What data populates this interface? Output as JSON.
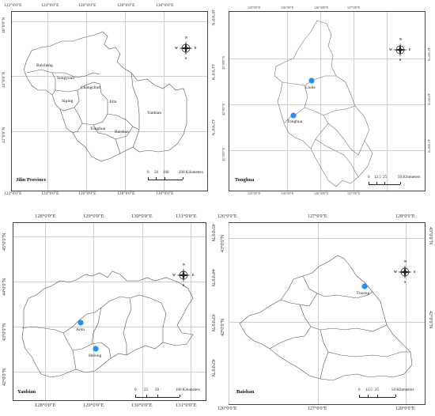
{
  "colors": {
    "city_dot": "#1e90ff",
    "border": "#444444",
    "grid": "#cfcfcf"
  },
  "panels": [
    {
      "id": "jilin",
      "title": "Jilin Province",
      "top_ticks": [
        "122°0'0\"E",
        "124°0'0\"E",
        "126°0'0\"E",
        "128°0'0\"E",
        "130°0'0\"E"
      ],
      "bottom_ticks": [
        "122°0'0\"E",
        "124°0'0\"E",
        "126°0'0\"E",
        "128°0'0\"E",
        "130°0'0\"E"
      ],
      "left_ticks": [
        "46°0'0\"N",
        "44°0'0\"N",
        "42°0'0\"N"
      ],
      "right_ticks": [
        "46°0'0\"N",
        "44°0'0\"N",
        "42°0'0\"N"
      ],
      "places": [
        "Baicheng",
        "Songyuan",
        "Changchun",
        "Siping",
        "Jilin",
        "Yanbian",
        "Tonghua",
        "Baishan"
      ],
      "scale": {
        "ticks": [
          "0",
          "50",
          "100",
          "200 Kilometers"
        ]
      },
      "compass_icon": "north-arrow-icon"
    },
    {
      "id": "tonghua",
      "title": "Tonghua",
      "top_ticks": [
        "125°0'0\"E",
        "126°0'0\"E",
        "126°30'0\"E",
        "127°0'0\"E"
      ],
      "bottom_ticks": [
        "125°0'0\"E",
        "126°0'0\"E",
        "126°30'0\"E",
        "127°0'0\"E"
      ],
      "left_ticks": [
        "42°30'0\"N",
        "42°0'0\"N",
        "41°30'0\"N"
      ],
      "right_ticks": [
        "42°30'0\"N",
        "42°0'0\"N",
        "41°30'0\"N"
      ],
      "places": [
        "Liuhe",
        "Tonghua"
      ],
      "scale": {
        "ticks": [
          "0",
          "12.5",
          "25",
          "50 Kilometers"
        ]
      },
      "compass_icon": "north-arrow-icon"
    },
    {
      "id": "yanbian",
      "title": "Yanbian",
      "top_ticks": [
        "128°0'0\"E",
        "129°0'0\"E",
        "130°0'0\"E",
        "131°0'0\"E"
      ],
      "bottom_ticks": [
        "128°0'0\"E",
        "129°0'0\"E",
        "130°0'0\"E",
        "131°0'0\"E"
      ],
      "left_ticks": [
        "45°0'0\"N",
        "44°0'0\"N",
        "43°0'0\"N",
        "42°0'0\"N"
      ],
      "right_ticks": [
        "45°0'0\"N",
        "44°0'0\"N",
        "43°0'0\"N",
        "42°0'0\"N"
      ],
      "places": [
        "Antu",
        "Helong"
      ],
      "scale": {
        "ticks": [
          "0",
          "25",
          "50",
          "100 Kilometers"
        ]
      },
      "compass_icon": "north-arrow-icon"
    },
    {
      "id": "baishan",
      "title": "Baishan",
      "top_ticks": [
        "126°0'0\"E",
        "127°0'0\"E",
        "128°0'0\"E"
      ],
      "bottom_ticks": [
        "126°0'0\"E",
        "127°0'0\"E",
        "128°0'0\"E"
      ],
      "left_ticks": [
        "43°0'0\"N",
        "42°0'0\"N"
      ],
      "right_ticks": [
        "43°0'0\"N",
        "42°0'0\"N"
      ],
      "places": [
        "Fusong"
      ],
      "scale": {
        "ticks": [
          "0",
          "12.5",
          "25",
          "50 Kilometers"
        ]
      },
      "compass_icon": "north-arrow-icon"
    }
  ],
  "compass_letters": {
    "n": "N",
    "s": "S",
    "e": "E",
    "w": "W"
  }
}
